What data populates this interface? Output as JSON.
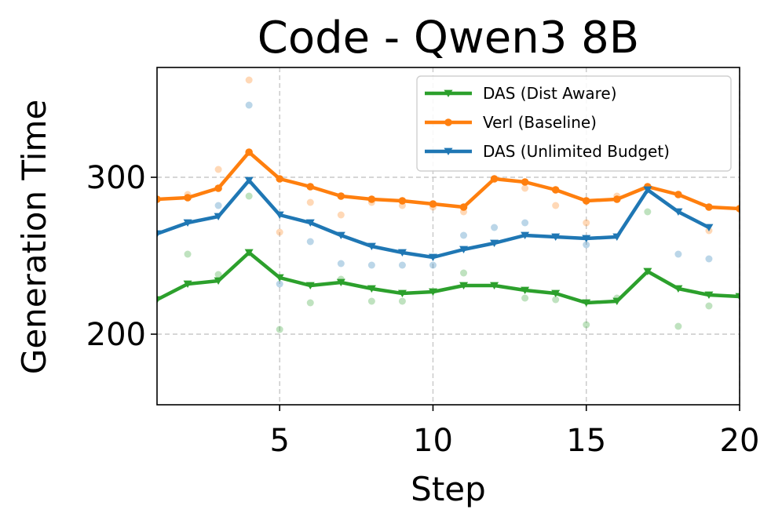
{
  "chart_data": {
    "type": "line",
    "title": "Code - Qwen3 8B",
    "xlabel": "Step",
    "ylabel": "Generation Time",
    "xlim": [
      1,
      20
    ],
    "ylim": [
      155,
      370
    ],
    "xticks": [
      5,
      10,
      15,
      20
    ],
    "yticks": [
      200,
      300
    ],
    "grid": true,
    "legend_position": "top-right",
    "series": [
      {
        "name": "DAS (Dist Aware)",
        "color": "#2ca02c",
        "marker": "triangle-down",
        "x": [
          1,
          2,
          3,
          4,
          5,
          6,
          7,
          8,
          9,
          10,
          11,
          12,
          13,
          14,
          15,
          16,
          17,
          18,
          19,
          20
        ],
        "values": [
          222,
          232,
          234,
          252,
          236,
          231,
          233,
          229,
          226,
          227,
          231,
          231,
          228,
          226,
          220,
          221,
          240,
          229,
          225,
          224
        ],
        "raw": [
          null,
          251,
          238,
          288,
          203,
          220,
          235,
          221,
          221,
          null,
          239,
          null,
          223,
          222,
          206,
          223,
          278,
          205,
          218,
          null
        ]
      },
      {
        "name": "Verl (Baseline)",
        "color": "#ff7f0e",
        "marker": "circle",
        "x": [
          1,
          2,
          3,
          4,
          5,
          6,
          7,
          8,
          9,
          10,
          11,
          12,
          13,
          14,
          15,
          16,
          17,
          18,
          19,
          20
        ],
        "values": [
          286,
          287,
          293,
          316,
          299,
          294,
          288,
          286,
          285,
          283,
          281,
          299,
          297,
          292,
          285,
          286,
          294,
          289,
          281,
          280
        ],
        "raw": [
          null,
          289,
          305,
          362,
          265,
          284,
          276,
          284,
          282,
          281,
          278,
          null,
          293,
          282,
          271,
          288,
          null,
          null,
          266,
          null
        ]
      },
      {
        "name": "DAS (Unlimited Budget)",
        "color": "#1f77b4",
        "marker": "triangle-down",
        "x": [
          1,
          2,
          3,
          4,
          5,
          6,
          7,
          8,
          9,
          10,
          11,
          12,
          13,
          14,
          15,
          16,
          17,
          18,
          19
        ],
        "values": [
          264,
          271,
          275,
          298,
          276,
          271,
          263,
          256,
          252,
          249,
          254,
          258,
          263,
          262,
          261,
          262,
          292,
          278,
          268
        ],
        "raw": [
          null,
          null,
          282,
          346,
          232,
          259,
          245,
          244,
          244,
          244,
          263,
          268,
          271,
          null,
          257,
          null,
          null,
          251,
          248
        ]
      }
    ]
  }
}
